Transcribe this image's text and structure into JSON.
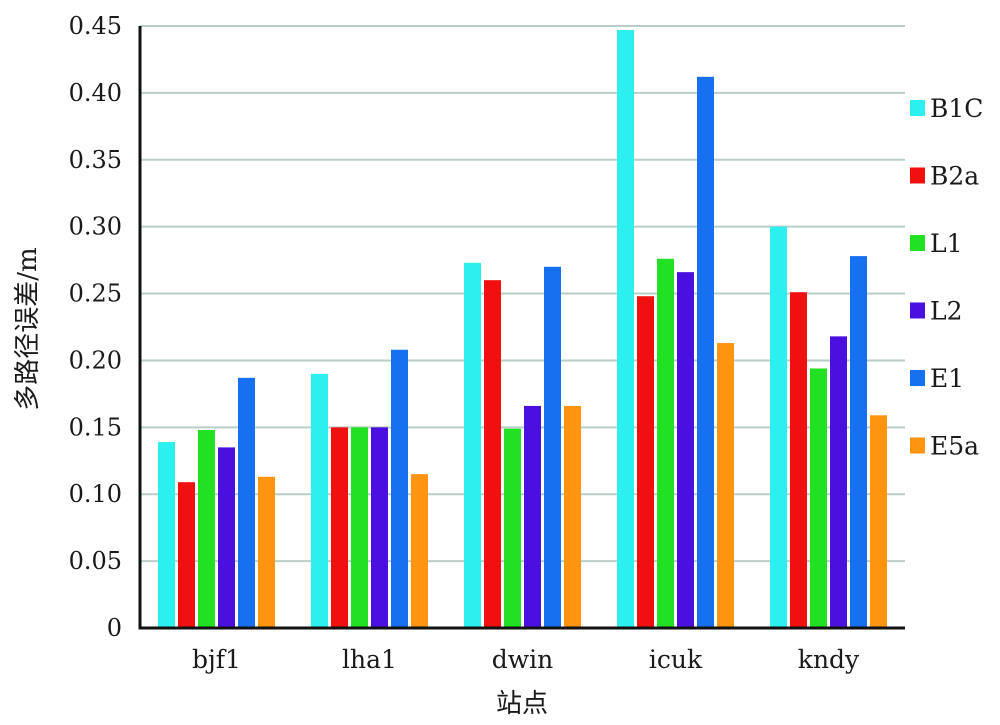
{
  "chart_data": {
    "type": "bar",
    "title": "",
    "xlabel": "站点",
    "ylabel": "多路径误差/m",
    "categories": [
      "bjf1",
      "lha1",
      "dwin",
      "icuk",
      "kndy"
    ],
    "y_ticks": [
      "0",
      "0.05",
      "0.10",
      "0.15",
      "0.20",
      "0.25",
      "0.30",
      "0.35",
      "0.40",
      "0.45"
    ],
    "ylim": [
      0,
      0.45
    ],
    "grid": true,
    "legend_position": "right",
    "series": [
      {
        "name": "B1C",
        "color": "#2cf0f0",
        "values": [
          0.139,
          0.19,
          0.273,
          0.447,
          0.3
        ]
      },
      {
        "name": "B2a",
        "color": "#f01010",
        "values": [
          0.109,
          0.15,
          0.26,
          0.248,
          0.251
        ]
      },
      {
        "name": "L1",
        "color": "#22e022",
        "values": [
          0.148,
          0.15,
          0.149,
          0.276,
          0.194
        ]
      },
      {
        "name": "L2",
        "color": "#4a10e0",
        "values": [
          0.135,
          0.15,
          0.166,
          0.266,
          0.218
        ]
      },
      {
        "name": "E1",
        "color": "#1670f0",
        "values": [
          0.187,
          0.208,
          0.27,
          0.412,
          0.278
        ]
      },
      {
        "name": "E5a",
        "color": "#ff9410",
        "values": [
          0.113,
          0.115,
          0.166,
          0.213,
          0.159
        ]
      }
    ]
  }
}
